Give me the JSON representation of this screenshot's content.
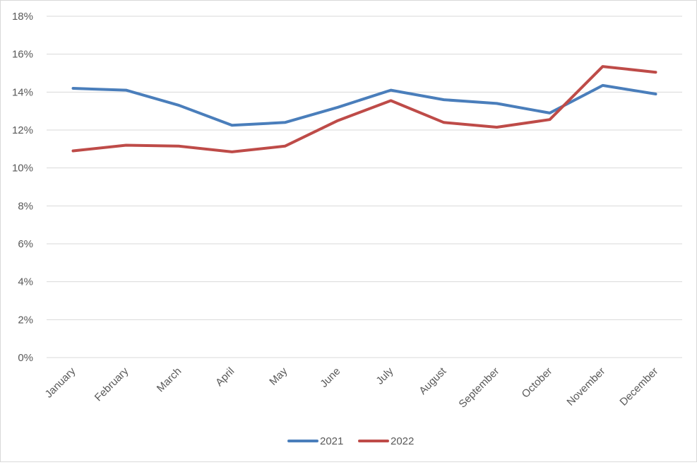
{
  "chart_data": {
    "type": "line",
    "title": "",
    "xlabel": "",
    "ylabel": "",
    "categories": [
      "January",
      "February",
      "March",
      "April",
      "May",
      "June",
      "July",
      "August",
      "September",
      "October",
      "November",
      "December"
    ],
    "y_ticks": [
      "0%",
      "2%",
      "4%",
      "6%",
      "8%",
      "10%",
      "12%",
      "14%",
      "16%",
      "18%"
    ],
    "ylim": [
      0,
      18
    ],
    "y_unit": "%",
    "grid": true,
    "legend_position": "bottom",
    "series": [
      {
        "name": "2021",
        "color": "#4a7ebb",
        "values": [
          14.2,
          14.1,
          13.3,
          12.25,
          12.4,
          13.2,
          14.1,
          13.6,
          13.4,
          12.9,
          14.35,
          13.9
        ]
      },
      {
        "name": "2022",
        "color": "#be4b48",
        "values": [
          10.9,
          11.2,
          11.15,
          10.85,
          11.15,
          12.5,
          13.55,
          12.4,
          12.15,
          12.55,
          15.35,
          15.05
        ]
      }
    ]
  }
}
